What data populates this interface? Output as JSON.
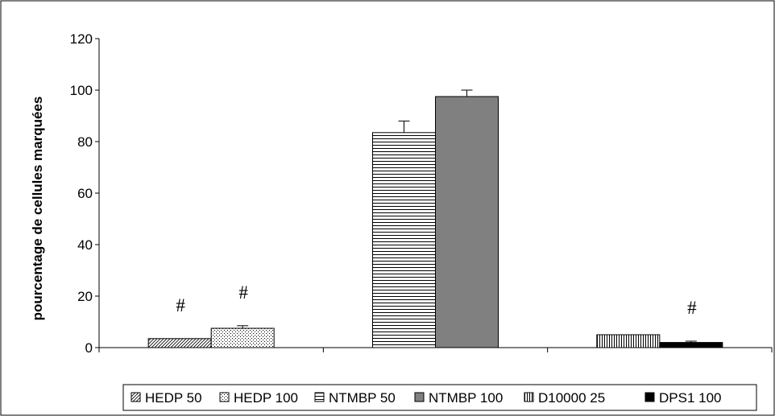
{
  "chart_data": {
    "type": "bar",
    "title": "",
    "xlabel": "",
    "ylabel": "pourcentage de cellules marquées",
    "ylim": [
      0,
      120
    ],
    "yticks": [
      "0",
      "20",
      "40",
      "60",
      "80",
      "100",
      "120"
    ],
    "grid": false,
    "legend_position": "bottom",
    "categories": [
      "",
      "",
      ""
    ],
    "series": [
      {
        "name": "HEDP 50",
        "pattern": "diagonal-hatch",
        "color": "#000000",
        "values": [
          3.5,
          null,
          null
        ],
        "error": [
          0,
          null,
          null
        ],
        "annotation": [
          "#",
          null,
          null
        ]
      },
      {
        "name": "HEDP 100",
        "pattern": "dots",
        "color": "#000000",
        "values": [
          7.5,
          null,
          null
        ],
        "error": [
          1,
          null,
          null
        ],
        "annotation": [
          "#",
          null,
          null
        ]
      },
      {
        "name": "NTMBP 50",
        "pattern": "horizontal-lines",
        "color": "#000000",
        "values": [
          null,
          83.5,
          null
        ],
        "error": [
          null,
          4.5,
          null
        ],
        "annotation": [
          null,
          null,
          null
        ]
      },
      {
        "name": "NTMBP 100",
        "pattern": "solid",
        "color": "#808080",
        "values": [
          null,
          97.5,
          null
        ],
        "error": [
          null,
          2.5,
          null
        ],
        "annotation": [
          null,
          null,
          null
        ]
      },
      {
        "name": "D10000 25",
        "pattern": "vertical-lines",
        "color": "#000000",
        "values": [
          null,
          null,
          5
        ],
        "error": [
          null,
          null,
          0
        ],
        "annotation": [
          null,
          null,
          null
        ]
      },
      {
        "name": "DPS1 100",
        "pattern": "solid",
        "color": "#000000",
        "values": [
          null,
          null,
          2
        ],
        "error": [
          null,
          null,
          0.5
        ],
        "annotation": [
          null,
          null,
          "#"
        ]
      }
    ]
  }
}
